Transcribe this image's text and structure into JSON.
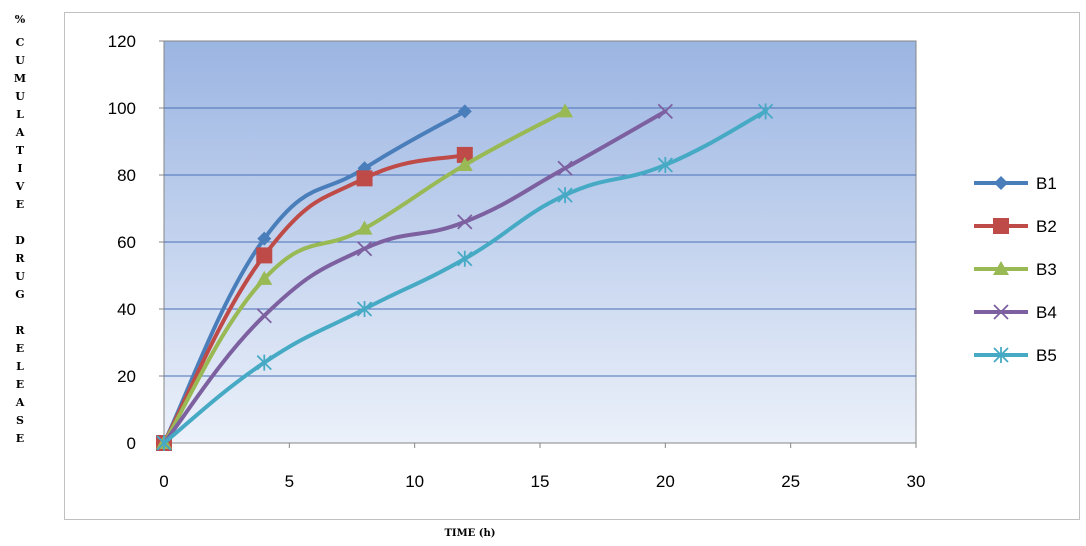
{
  "ylabel_chars": [
    "%",
    "C",
    "U",
    "M",
    "U",
    "L",
    "A",
    "T",
    "I",
    "V",
    "E",
    "",
    "D",
    "R",
    "U",
    "G",
    "",
    "R",
    "E",
    "L",
    "E",
    "A",
    "S",
    "E"
  ],
  "xlabel": "TIME (h)",
  "chart_data": {
    "type": "line",
    "title": "",
    "xlabel": "TIME (h)",
    "ylabel": "% CUMULATIVE DRUG RELEASE",
    "xlim": [
      0,
      30
    ],
    "ylim": [
      0,
      120
    ],
    "xticks": [
      0,
      5,
      10,
      15,
      20,
      25,
      30
    ],
    "yticks": [
      0,
      20,
      40,
      60,
      80,
      100,
      120
    ],
    "grid": "horizontal",
    "legend": "right",
    "series": [
      {
        "name": "B1",
        "color": "#4a7ebb",
        "marker": "diamond",
        "x": [
          0,
          4,
          8,
          12
        ],
        "y": [
          0,
          61,
          82,
          99
        ]
      },
      {
        "name": "B2",
        "color": "#be4b48",
        "marker": "square",
        "x": [
          0,
          4,
          8,
          12
        ],
        "y": [
          0,
          56,
          79,
          86
        ]
      },
      {
        "name": "B3",
        "color": "#98b954",
        "marker": "triangle",
        "x": [
          0,
          4,
          8,
          12,
          16
        ],
        "y": [
          0,
          49,
          64,
          83,
          99
        ]
      },
      {
        "name": "B4",
        "color": "#7d60a0",
        "marker": "x",
        "x": [
          0,
          4,
          8,
          12,
          16,
          20
        ],
        "y": [
          0,
          38,
          58,
          66,
          82,
          99
        ]
      },
      {
        "name": "B5",
        "color": "#46aac5",
        "marker": "star",
        "x": [
          0,
          4,
          8,
          12,
          16,
          20,
          24
        ],
        "y": [
          0,
          24,
          40,
          55,
          74,
          83,
          99
        ]
      }
    ]
  }
}
